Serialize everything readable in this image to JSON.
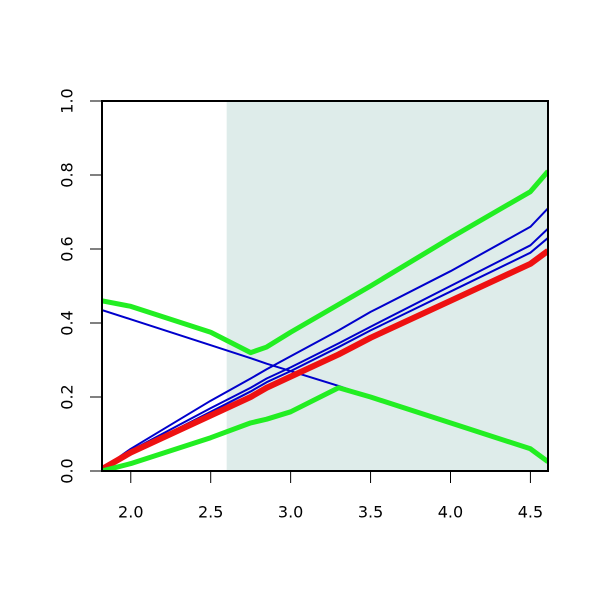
{
  "chart_data": {
    "type": "line",
    "x": [
      1.82,
      2.0,
      2.5,
      2.75,
      2.85,
      3.0,
      3.3,
      3.5,
      4.0,
      4.5,
      4.61
    ],
    "series": [
      {
        "color": "#0000cc",
        "linewidth": 2,
        "values": [
          0.435,
          0.41,
          0.34,
          0.305,
          0.29,
          0.27,
          0.23,
          0.2,
          0.13,
          0.06,
          0.03
        ]
      },
      {
        "color": "#0000cc",
        "linewidth": 2,
        "values": [
          0.005,
          0.06,
          0.19,
          0.25,
          0.275,
          0.31,
          0.38,
          0.43,
          0.54,
          0.66,
          0.71
        ]
      },
      {
        "color": "#0000cc",
        "linewidth": 2,
        "values": [
          0.005,
          0.055,
          0.17,
          0.225,
          0.25,
          0.28,
          0.345,
          0.39,
          0.5,
          0.61,
          0.655
        ]
      },
      {
        "color": "#0000cc",
        "linewidth": 2,
        "values": [
          0.005,
          0.05,
          0.16,
          0.215,
          0.24,
          0.27,
          0.335,
          0.38,
          0.485,
          0.59,
          0.63
        ]
      },
      {
        "color": "#ee1111",
        "linewidth": 6,
        "values": [
          0.005,
          0.05,
          0.15,
          0.2,
          0.225,
          0.255,
          0.315,
          0.36,
          0.46,
          0.56,
          0.595
        ]
      },
      {
        "color": "#22ee22",
        "linewidth": 5,
        "values": [
          0.46,
          0.445,
          0.375,
          0.32,
          0.335,
          0.375,
          0.45,
          0.5,
          0.63,
          0.755,
          0.81
        ]
      },
      {
        "color": "#22ee22",
        "linewidth": 5,
        "values": [
          0.0,
          0.02,
          0.09,
          0.13,
          0.14,
          0.16,
          0.225,
          0.2,
          0.13,
          0.06,
          0.025
        ]
      }
    ],
    "shaded_region": {
      "x": [
        2.6,
        4.61
      ],
      "color": "#deecea"
    },
    "xlim": [
      1.82,
      4.61
    ],
    "ylim": [
      0,
      1
    ],
    "xticks": [
      {
        "value": 2,
        "label": "2.0"
      },
      {
        "value": 2.5,
        "label": "2.5"
      },
      {
        "value": 3,
        "label": "3.0"
      },
      {
        "value": 3.5,
        "label": "3.5"
      },
      {
        "value": 4,
        "label": "4.0"
      },
      {
        "value": 4.5,
        "label": "4.5"
      }
    ],
    "yticks": [
      {
        "value": 0,
        "label": "0.0"
      },
      {
        "value": 0.2,
        "label": "0.2"
      },
      {
        "value": 0.4,
        "label": "0.4"
      },
      {
        "value": 0.6,
        "label": "0.6"
      },
      {
        "value": 0.8,
        "label": "0.8"
      },
      {
        "value": 1,
        "label": "1.0"
      }
    ]
  }
}
